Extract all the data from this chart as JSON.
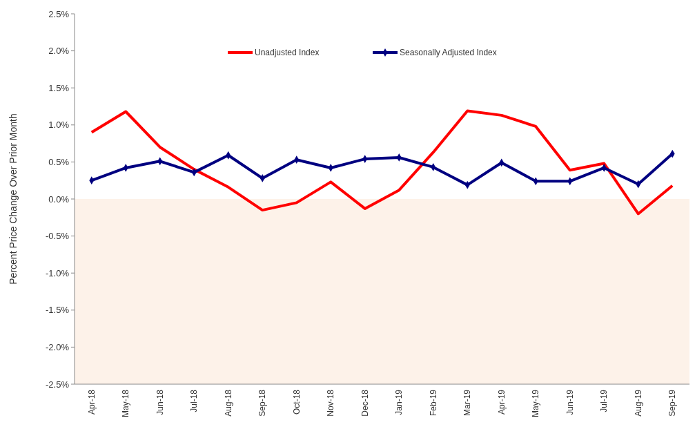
{
  "chart_data": {
    "type": "line",
    "ylabel": "Percent Price Change Over Prior Month",
    "categories": [
      "Apr-18",
      "May-18",
      "Jun-18",
      "Jul-18",
      "Aug-18",
      "Sep-18",
      "Oct-18",
      "Nov-18",
      "Dec-18",
      "Jan-19",
      "Feb-19",
      "Mar-19",
      "Apr-19",
      "May-19",
      "Jun-19",
      "Jul-19",
      "Aug-19",
      "Sep-19"
    ],
    "series": [
      {
        "name": "Unadjusted Index",
        "color": "#ff0000",
        "marker": "none",
        "values": [
          0.9,
          1.18,
          0.7,
          0.4,
          0.16,
          -0.15,
          -0.05,
          0.23,
          -0.13,
          0.12,
          0.63,
          1.19,
          1.13,
          0.98,
          0.39,
          0.48,
          -0.2,
          0.18
        ]
      },
      {
        "name": "Seasonally Adjusted Index",
        "color": "#000080",
        "marker": "diamond",
        "values": [
          0.25,
          0.42,
          0.51,
          0.36,
          0.59,
          0.28,
          0.53,
          0.42,
          0.54,
          0.56,
          0.43,
          0.19,
          0.49,
          0.24,
          0.24,
          0.42,
          0.2,
          0.61
        ]
      }
    ],
    "ylim": [
      -2.5,
      2.5
    ],
    "yticks": [
      {
        "value": -2.5,
        "label": "-2.5%"
      },
      {
        "value": -2,
        "label": "-2.0%"
      },
      {
        "value": -1.5,
        "label": "-1.5%"
      },
      {
        "value": -1,
        "label": "-1.0%"
      },
      {
        "value": -0.5,
        "label": "-0.5%"
      },
      {
        "value": 0,
        "label": "0.0%"
      },
      {
        "value": 0.5,
        "label": "0.5%"
      },
      {
        "value": 1,
        "label": "1.0%"
      },
      {
        "value": 1.5,
        "label": "1.5%"
      },
      {
        "value": 2,
        "label": "2.0%"
      },
      {
        "value": 2.5,
        "label": "2.5%"
      }
    ],
    "bands": [
      {
        "axis": "y",
        "from": -2.5,
        "to": 0,
        "color": "#fdf2e9"
      }
    ],
    "legend": "top",
    "line_style": "solid"
  }
}
